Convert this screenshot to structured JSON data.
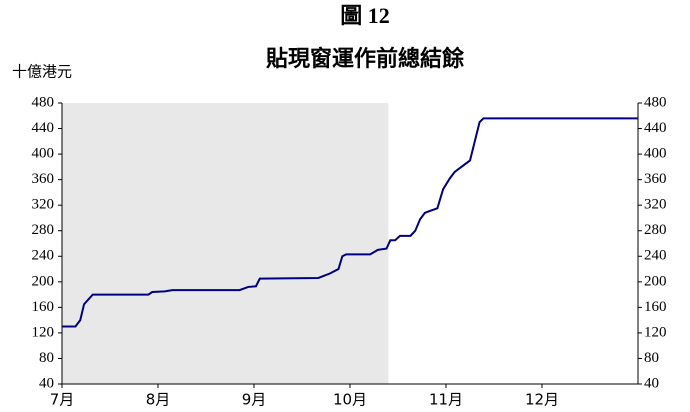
{
  "chart_data": {
    "type": "line",
    "title": "圖 12",
    "subtitle": "貼現窗運作前總結餘",
    "ylabel": "十億港元",
    "xlim": [
      0,
      6
    ],
    "xticks": [
      {
        "value": 0,
        "label": "7月"
      },
      {
        "value": 1,
        "label": "8月"
      },
      {
        "value": 2,
        "label": "9月"
      },
      {
        "value": 3,
        "label": "10月"
      },
      {
        "value": 4,
        "label": "11月"
      },
      {
        "value": 5,
        "label": "12月"
      }
    ],
    "ylim": [
      40,
      480
    ],
    "yticks": [
      40,
      80,
      120,
      160,
      200,
      240,
      280,
      320,
      360,
      400,
      440,
      480
    ],
    "y2lim": [
      40,
      480
    ],
    "y2ticks": [
      40,
      80,
      120,
      160,
      200,
      240,
      280,
      320,
      360,
      400,
      440,
      480
    ],
    "shade": [
      0,
      3.4
    ],
    "shade_color": "#e8e8e8",
    "series": [
      {
        "name": "總結餘",
        "color": "#000080",
        "x": [
          0,
          0.14,
          0.19,
          0.23,
          0.32,
          0.9,
          0.94,
          1.07,
          1.15,
          1.85,
          1.94,
          2.02,
          2.06,
          2.67,
          2.79,
          2.88,
          2.92,
          2.96,
          3.21,
          3.29,
          3.38,
          3.42,
          3.47,
          3.52,
          3.63,
          3.68,
          3.73,
          3.78,
          3.85,
          3.91,
          3.97,
          4.04,
          4.09,
          4.25,
          4.3,
          4.35,
          4.39,
          6
        ],
        "values": [
          130,
          130,
          140,
          165,
          180,
          180,
          184,
          185,
          187,
          187,
          192,
          193,
          205,
          206,
          213,
          220,
          240,
          243,
          243,
          250,
          252,
          265,
          265,
          272,
          272,
          280,
          298,
          308,
          312,
          315,
          345,
          362,
          372,
          390,
          420,
          450,
          456,
          456
        ]
      }
    ]
  }
}
